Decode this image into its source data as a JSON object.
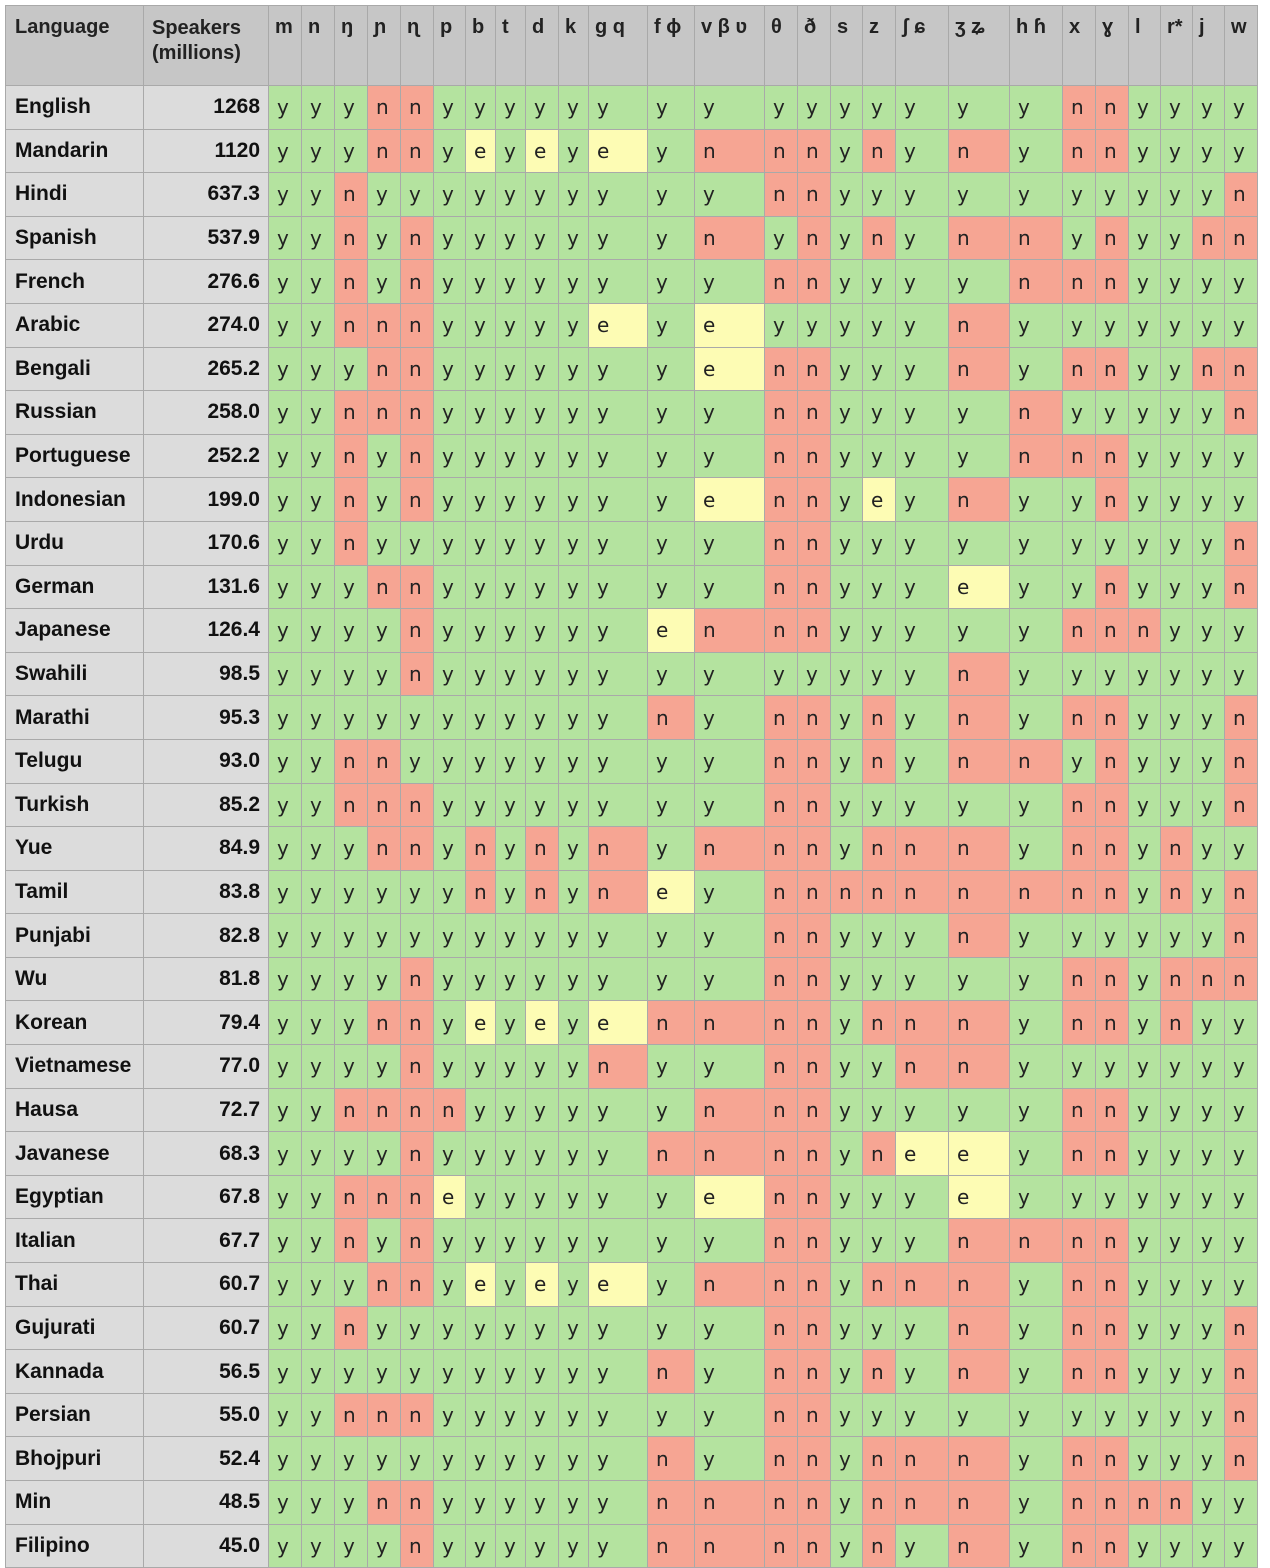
{
  "columns": {
    "language": "Language",
    "speakers_line1": "Speakers",
    "speakers_line2": "(millions)",
    "sounds": [
      "m",
      "n",
      "ŋ",
      "ɲ",
      "ɳ",
      "p",
      "b",
      "t",
      "d",
      "k",
      "g q",
      "f ɸ",
      "v β ʋ",
      "θ",
      "ð",
      "s",
      "z",
      "ʃ ɕ",
      "ʒ ʑ",
      "h ɦ",
      "x",
      "ɣ",
      "l",
      "r*",
      "j",
      "w"
    ]
  },
  "cell_colors": {
    "y": "#b4e39f",
    "n": "#f6a593",
    "e": "#fdfcb4"
  },
  "rows": [
    {
      "language": "English",
      "speakers": "1268",
      "cells": [
        "y",
        "y",
        "y",
        "n",
        "n",
        "y",
        "y",
        "y",
        "y",
        "y",
        "y",
        "y",
        "y",
        "y",
        "y",
        "y",
        "y",
        "y",
        "y",
        "y",
        "n",
        "n",
        "y",
        "y",
        "y",
        "y"
      ]
    },
    {
      "language": "Mandarin",
      "speakers": "1120",
      "cells": [
        "y",
        "y",
        "y",
        "n",
        "n",
        "y",
        "e",
        "y",
        "e",
        "y",
        "e",
        "y",
        "n",
        "n",
        "n",
        "y",
        "n",
        "y",
        "n",
        "y",
        "n",
        "n",
        "y",
        "y",
        "y",
        "y"
      ]
    },
    {
      "language": "Hindi",
      "speakers": "637.3",
      "cells": [
        "y",
        "y",
        "n",
        "y",
        "y",
        "y",
        "y",
        "y",
        "y",
        "y",
        "y",
        "y",
        "y",
        "n",
        "n",
        "y",
        "y",
        "y",
        "y",
        "y",
        "y",
        "y",
        "y",
        "y",
        "y",
        "n"
      ]
    },
    {
      "language": "Spanish",
      "speakers": "537.9",
      "cells": [
        "y",
        "y",
        "n",
        "y",
        "n",
        "y",
        "y",
        "y",
        "y",
        "y",
        "y",
        "y",
        "n",
        "y",
        "n",
        "y",
        "n",
        "y",
        "n",
        "n",
        "y",
        "n",
        "y",
        "y",
        "n",
        "n"
      ]
    },
    {
      "language": "French",
      "speakers": "276.6",
      "cells": [
        "y",
        "y",
        "n",
        "y",
        "n",
        "y",
        "y",
        "y",
        "y",
        "y",
        "y",
        "y",
        "y",
        "n",
        "n",
        "y",
        "y",
        "y",
        "y",
        "n",
        "n",
        "n",
        "y",
        "y",
        "y",
        "y"
      ]
    },
    {
      "language": "Arabic",
      "speakers": "274.0",
      "cells": [
        "y",
        "y",
        "n",
        "n",
        "n",
        "y",
        "y",
        "y",
        "y",
        "y",
        "e",
        "y",
        "e",
        "y",
        "y",
        "y",
        "y",
        "y",
        "n",
        "y",
        "y",
        "y",
        "y",
        "y",
        "y",
        "y"
      ]
    },
    {
      "language": "Bengali",
      "speakers": "265.2",
      "cells": [
        "y",
        "y",
        "y",
        "n",
        "n",
        "y",
        "y",
        "y",
        "y",
        "y",
        "y",
        "y",
        "e",
        "n",
        "n",
        "y",
        "y",
        "y",
        "n",
        "y",
        "n",
        "n",
        "y",
        "y",
        "n",
        "n"
      ]
    },
    {
      "language": "Russian",
      "speakers": "258.0",
      "cells": [
        "y",
        "y",
        "n",
        "n",
        "n",
        "y",
        "y",
        "y",
        "y",
        "y",
        "y",
        "y",
        "y",
        "n",
        "n",
        "y",
        "y",
        "y",
        "y",
        "n",
        "y",
        "y",
        "y",
        "y",
        "y",
        "n"
      ]
    },
    {
      "language": "Portuguese",
      "speakers": "252.2",
      "cells": [
        "y",
        "y",
        "n",
        "y",
        "n",
        "y",
        "y",
        "y",
        "y",
        "y",
        "y",
        "y",
        "y",
        "n",
        "n",
        "y",
        "y",
        "y",
        "y",
        "n",
        "n",
        "n",
        "y",
        "y",
        "y",
        "y"
      ]
    },
    {
      "language": "Indonesian",
      "speakers": "199.0",
      "cells": [
        "y",
        "y",
        "n",
        "y",
        "n",
        "y",
        "y",
        "y",
        "y",
        "y",
        "y",
        "y",
        "e",
        "n",
        "n",
        "y",
        "e",
        "y",
        "n",
        "y",
        "y",
        "n",
        "y",
        "y",
        "y",
        "y"
      ]
    },
    {
      "language": "Urdu",
      "speakers": "170.6",
      "cells": [
        "y",
        "y",
        "n",
        "y",
        "y",
        "y",
        "y",
        "y",
        "y",
        "y",
        "y",
        "y",
        "y",
        "n",
        "n",
        "y",
        "y",
        "y",
        "y",
        "y",
        "y",
        "y",
        "y",
        "y",
        "y",
        "n"
      ]
    },
    {
      "language": "German",
      "speakers": "131.6",
      "cells": [
        "y",
        "y",
        "y",
        "n",
        "n",
        "y",
        "y",
        "y",
        "y",
        "y",
        "y",
        "y",
        "y",
        "n",
        "n",
        "y",
        "y",
        "y",
        "e",
        "y",
        "y",
        "n",
        "y",
        "y",
        "y",
        "n"
      ]
    },
    {
      "language": "Japanese",
      "speakers": "126.4",
      "cells": [
        "y",
        "y",
        "y",
        "y",
        "n",
        "y",
        "y",
        "y",
        "y",
        "y",
        "y",
        "e",
        "n",
        "n",
        "n",
        "y",
        "y",
        "y",
        "y",
        "y",
        "n",
        "n",
        "n",
        "y",
        "y",
        "y"
      ]
    },
    {
      "language": "Swahili",
      "speakers": "98.5",
      "cells": [
        "y",
        "y",
        "y",
        "y",
        "n",
        "y",
        "y",
        "y",
        "y",
        "y",
        "y",
        "y",
        "y",
        "y",
        "y",
        "y",
        "y",
        "y",
        "n",
        "y",
        "y",
        "y",
        "y",
        "y",
        "y",
        "y"
      ]
    },
    {
      "language": "Marathi",
      "speakers": "95.3",
      "cells": [
        "y",
        "y",
        "y",
        "y",
        "y",
        "y",
        "y",
        "y",
        "y",
        "y",
        "y",
        "n",
        "y",
        "n",
        "n",
        "y",
        "n",
        "y",
        "n",
        "y",
        "n",
        "n",
        "y",
        "y",
        "y",
        "n"
      ]
    },
    {
      "language": "Telugu",
      "speakers": "93.0",
      "cells": [
        "y",
        "y",
        "n",
        "n",
        "y",
        "y",
        "y",
        "y",
        "y",
        "y",
        "y",
        "y",
        "y",
        "n",
        "n",
        "y",
        "n",
        "y",
        "n",
        "n",
        "y",
        "n",
        "y",
        "y",
        "y",
        "n"
      ]
    },
    {
      "language": "Turkish",
      "speakers": "85.2",
      "cells": [
        "y",
        "y",
        "n",
        "n",
        "n",
        "y",
        "y",
        "y",
        "y",
        "y",
        "y",
        "y",
        "y",
        "n",
        "n",
        "y",
        "y",
        "y",
        "y",
        "y",
        "n",
        "n",
        "y",
        "y",
        "y",
        "n"
      ]
    },
    {
      "language": "Yue",
      "speakers": "84.9",
      "cells": [
        "y",
        "y",
        "y",
        "n",
        "n",
        "y",
        "n",
        "y",
        "n",
        "y",
        "n",
        "y",
        "n",
        "n",
        "n",
        "y",
        "n",
        "n",
        "n",
        "y",
        "n",
        "n",
        "y",
        "n",
        "y",
        "y"
      ]
    },
    {
      "language": "Tamil",
      "speakers": "83.8",
      "cells": [
        "y",
        "y",
        "y",
        "y",
        "y",
        "y",
        "n",
        "y",
        "n",
        "y",
        "n",
        "e",
        "y",
        "n",
        "n",
        "n",
        "n",
        "n",
        "n",
        "n",
        "n",
        "n",
        "y",
        "n",
        "y",
        "n"
      ]
    },
    {
      "language": "Punjabi",
      "speakers": "82.8",
      "cells": [
        "y",
        "y",
        "y",
        "y",
        "y",
        "y",
        "y",
        "y",
        "y",
        "y",
        "y",
        "y",
        "y",
        "n",
        "n",
        "y",
        "y",
        "y",
        "n",
        "y",
        "y",
        "y",
        "y",
        "y",
        "y",
        "n"
      ]
    },
    {
      "language": "Wu",
      "speakers": "81.8",
      "cells": [
        "y",
        "y",
        "y",
        "y",
        "n",
        "y",
        "y",
        "y",
        "y",
        "y",
        "y",
        "y",
        "y",
        "n",
        "n",
        "y",
        "y",
        "y",
        "y",
        "y",
        "n",
        "n",
        "y",
        "n",
        "n",
        "n"
      ]
    },
    {
      "language": "Korean",
      "speakers": "79.4",
      "cells": [
        "y",
        "y",
        "y",
        "n",
        "n",
        "y",
        "e",
        "y",
        "e",
        "y",
        "e",
        "n",
        "n",
        "n",
        "n",
        "y",
        "n",
        "n",
        "n",
        "y",
        "n",
        "n",
        "y",
        "n",
        "y",
        "y"
      ]
    },
    {
      "language": "Vietnamese",
      "speakers": "77.0",
      "cells": [
        "y",
        "y",
        "y",
        "y",
        "n",
        "y",
        "y",
        "y",
        "y",
        "y",
        "n",
        "y",
        "y",
        "n",
        "n",
        "y",
        "y",
        "n",
        "n",
        "y",
        "y",
        "y",
        "y",
        "y",
        "y",
        "y"
      ]
    },
    {
      "language": "Hausa",
      "speakers": "72.7",
      "cells": [
        "y",
        "y",
        "n",
        "n",
        "n",
        "n",
        "y",
        "y",
        "y",
        "y",
        "y",
        "y",
        "n",
        "n",
        "n",
        "y",
        "y",
        "y",
        "y",
        "y",
        "n",
        "n",
        "y",
        "y",
        "y",
        "y"
      ]
    },
    {
      "language": "Javanese",
      "speakers": "68.3",
      "cells": [
        "y",
        "y",
        "y",
        "y",
        "n",
        "y",
        "y",
        "y",
        "y",
        "y",
        "y",
        "n",
        "n",
        "n",
        "n",
        "y",
        "n",
        "e",
        "e",
        "y",
        "n",
        "n",
        "y",
        "y",
        "y",
        "y"
      ]
    },
    {
      "language": "Egyptian",
      "speakers": "67.8",
      "cells": [
        "y",
        "y",
        "n",
        "n",
        "n",
        "e",
        "y",
        "y",
        "y",
        "y",
        "y",
        "y",
        "e",
        "n",
        "n",
        "y",
        "y",
        "y",
        "e",
        "y",
        "y",
        "y",
        "y",
        "y",
        "y",
        "y"
      ]
    },
    {
      "language": "Italian",
      "speakers": "67.7",
      "cells": [
        "y",
        "y",
        "n",
        "y",
        "n",
        "y",
        "y",
        "y",
        "y",
        "y",
        "y",
        "y",
        "y",
        "n",
        "n",
        "y",
        "y",
        "y",
        "n",
        "n",
        "n",
        "n",
        "y",
        "y",
        "y",
        "y"
      ]
    },
    {
      "language": "Thai",
      "speakers": "60.7",
      "cells": [
        "y",
        "y",
        "y",
        "n",
        "n",
        "y",
        "e",
        "y",
        "e",
        "y",
        "e",
        "y",
        "n",
        "n",
        "n",
        "y",
        "n",
        "n",
        "n",
        "y",
        "n",
        "n",
        "y",
        "y",
        "y",
        "y"
      ]
    },
    {
      "language": "Gujurati",
      "speakers": "60.7",
      "cells": [
        "y",
        "y",
        "n",
        "y",
        "y",
        "y",
        "y",
        "y",
        "y",
        "y",
        "y",
        "y",
        "y",
        "n",
        "n",
        "y",
        "y",
        "y",
        "n",
        "y",
        "n",
        "n",
        "y",
        "y",
        "y",
        "n"
      ]
    },
    {
      "language": "Kannada",
      "speakers": "56.5",
      "cells": [
        "y",
        "y",
        "y",
        "y",
        "y",
        "y",
        "y",
        "y",
        "y",
        "y",
        "y",
        "n",
        "y",
        "n",
        "n",
        "y",
        "n",
        "y",
        "n",
        "y",
        "n",
        "n",
        "y",
        "y",
        "y",
        "n"
      ]
    },
    {
      "language": "Persian",
      "speakers": "55.0",
      "cells": [
        "y",
        "y",
        "n",
        "n",
        "n",
        "y",
        "y",
        "y",
        "y",
        "y",
        "y",
        "y",
        "y",
        "n",
        "n",
        "y",
        "y",
        "y",
        "y",
        "y",
        "y",
        "y",
        "y",
        "y",
        "y",
        "n"
      ]
    },
    {
      "language": "Bhojpuri",
      "speakers": "52.4",
      "cells": [
        "y",
        "y",
        "y",
        "y",
        "y",
        "y",
        "y",
        "y",
        "y",
        "y",
        "y",
        "n",
        "y",
        "n",
        "n",
        "y",
        "n",
        "n",
        "n",
        "y",
        "n",
        "n",
        "y",
        "y",
        "y",
        "n"
      ]
    },
    {
      "language": "Min",
      "speakers": "48.5",
      "cells": [
        "y",
        "y",
        "y",
        "n",
        "n",
        "y",
        "y",
        "y",
        "y",
        "y",
        "y",
        "n",
        "n",
        "n",
        "n",
        "y",
        "n",
        "n",
        "n",
        "y",
        "n",
        "n",
        "n",
        "n",
        "y",
        "y"
      ]
    },
    {
      "language": "Filipino",
      "speakers": "45.0",
      "cells": [
        "y",
        "y",
        "y",
        "y",
        "n",
        "y",
        "y",
        "y",
        "y",
        "y",
        "y",
        "n",
        "n",
        "n",
        "n",
        "y",
        "n",
        "y",
        "n",
        "y",
        "n",
        "n",
        "y",
        "y",
        "y",
        "y"
      ]
    }
  ]
}
